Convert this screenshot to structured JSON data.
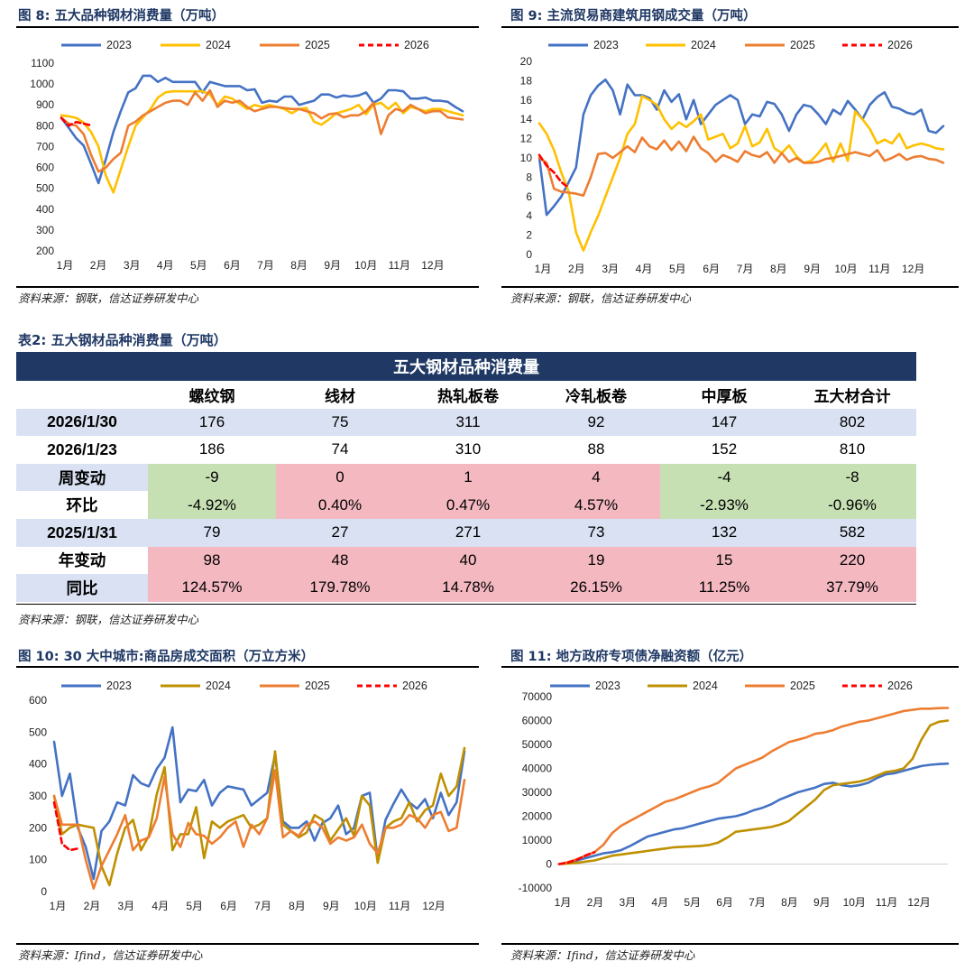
{
  "figures": {
    "fig8": {
      "title": "图 8:  五大品种钢材消费量（万吨）",
      "source": "资料来源：钢联，信达证券研发中心"
    },
    "fig9": {
      "title": "图 9:  主流贸易商建筑用钢成交量（万吨）",
      "source": "资料来源：钢联，信达证券研发中心"
    },
    "fig10": {
      "title": "图 10:  30 大中城市:商品房成交面积（万立方米）",
      "source": "资料来源：Ifind，信达证券研发中心"
    },
    "fig11": {
      "title": "图 11:  地方政府专项债净融资额（亿元）",
      "source": "资料来源：Ifind，信达证券研发中心"
    }
  },
  "table2": {
    "caption": "表2:  五大钢材品种消费量（万吨）",
    "header": "五大钢材品种消费量",
    "columns": [
      "螺纹钢",
      "线材",
      "热轧板卷",
      "冷轧板卷",
      "中厚板",
      "五大材合计"
    ],
    "rows": [
      {
        "label": "2026/1/30",
        "values": [
          "176",
          "75",
          "311",
          "92",
          "147",
          "802"
        ]
      },
      {
        "label": "2026/1/23",
        "values": [
          "186",
          "74",
          "310",
          "88",
          "152",
          "810"
        ]
      },
      {
        "label": "周变动",
        "values": [
          "-9",
          "0",
          "1",
          "4",
          "-4",
          "-8"
        ]
      },
      {
        "label": "环比",
        "values": [
          "-4.92%",
          "0.40%",
          "0.47%",
          "4.57%",
          "-2.93%",
          "-0.96%"
        ]
      },
      {
        "label": "2025/1/31",
        "values": [
          "79",
          "27",
          "271",
          "73",
          "132",
          "582"
        ]
      },
      {
        "label": "年变动",
        "values": [
          "98",
          "48",
          "40",
          "19",
          "15",
          "220"
        ]
      },
      {
        "label": "同比",
        "values": [
          "124.57%",
          "179.78%",
          "14.78%",
          "26.15%",
          "11.25%",
          "37.79%"
        ]
      }
    ],
    "source": "资料来源：钢联，信达证券研发中心"
  },
  "colors": {
    "y2023": "#4472c4",
    "y2024a": "#ffc000",
    "y2024b": "#bf9000",
    "y2025": "#ed7d31",
    "y2026": "#ff0000",
    "title": "#1f3864"
  },
  "chart_data": [
    {
      "id": "fig8",
      "type": "line",
      "title": "五大品种钢材消费量（万吨）",
      "xlabels": [
        "1月",
        "2月",
        "3月",
        "4月",
        "5月",
        "6月",
        "7月",
        "8月",
        "9月",
        "10月",
        "11月",
        "12月"
      ],
      "ylim": [
        200,
        1100
      ],
      "yticks": [
        200,
        300,
        400,
        500,
        600,
        700,
        800,
        900,
        1000,
        1100
      ],
      "legend": "top",
      "series": [
        {
          "name": "2023",
          "color": "#4472c4",
          "dash": false,
          "values": [
            838,
            790,
            740,
            705,
            617,
            525,
            640,
            770,
            870,
            960,
            980,
            1040,
            1040,
            1010,
            1030,
            1010,
            1010,
            1010,
            1010,
            960,
            1010,
            1000,
            990,
            990,
            990,
            970,
            975,
            910,
            920,
            915,
            940,
            940,
            900,
            910,
            920,
            950,
            950,
            935,
            945,
            940,
            945,
            960,
            910,
            930,
            970,
            970,
            965,
            930,
            930,
            935,
            920,
            920,
            915,
            890,
            870
          ]
        },
        {
          "name": "2024",
          "color": "#ffc000",
          "dash": false,
          "values": [
            850,
            845,
            838,
            815,
            770,
            700,
            560,
            480,
            590,
            700,
            800,
            840,
            880,
            935,
            960,
            965,
            965,
            965,
            965,
            965,
            950,
            900,
            940,
            930,
            905,
            880,
            900,
            890,
            900,
            890,
            880,
            860,
            880,
            885,
            820,
            805,
            830,
            860,
            870,
            880,
            900,
            855,
            900,
            910,
            880,
            910,
            860,
            890,
            880,
            870,
            880,
            880,
            870,
            860,
            850
          ]
        },
        {
          "name": "2025",
          "color": "#ed7d31",
          "dash": false,
          "values": [
            838,
            810,
            800,
            760,
            660,
            580,
            600,
            640,
            670,
            800,
            820,
            850,
            870,
            890,
            910,
            920,
            920,
            900,
            960,
            920,
            970,
            890,
            920,
            910,
            920,
            890,
            870,
            880,
            890,
            890,
            885,
            880,
            880,
            870,
            860,
            835,
            855,
            860,
            840,
            850,
            850,
            870,
            910,
            760,
            850,
            880,
            870,
            900,
            880,
            860,
            870,
            870,
            840,
            835,
            830
          ]
        },
        {
          "name": "2026",
          "color": "#ff0000",
          "dash": true,
          "values": [
            838,
            800,
            818,
            810,
            802
          ]
        }
      ]
    },
    {
      "id": "fig9",
      "type": "line",
      "title": "主流贸易商建筑用钢成交量（万吨）",
      "xlabels": [
        "1月",
        "2月",
        "3月",
        "4月",
        "5月",
        "6月",
        "7月",
        "8月",
        "9月",
        "10月",
        "11月",
        "12月"
      ],
      "ylim": [
        0,
        20
      ],
      "yticks": [
        0,
        2,
        4,
        6,
        8,
        10,
        12,
        14,
        16,
        18,
        20
      ],
      "legend": "top",
      "series": [
        {
          "name": "2023",
          "color": "#4472c4",
          "dash": false,
          "values": [
            10.0,
            4.1,
            5.0,
            6.0,
            7.5,
            9.0,
            14.5,
            16.5,
            17.5,
            18.1,
            17.0,
            14.5,
            17.6,
            16.5,
            16.5,
            16.2,
            15.0,
            17.0,
            15.8,
            16.6,
            14.0,
            16.0,
            13.5,
            14.5,
            15.5,
            16.0,
            16.5,
            16.0,
            13.5,
            14.5,
            14.3,
            15.8,
            15.6,
            14.5,
            12.8,
            14.5,
            15.5,
            15.3,
            14.5,
            13.5,
            15.0,
            14.5,
            15.9,
            15.0,
            14.0,
            15.5,
            16.3,
            16.8,
            15.3,
            15.1,
            14.7,
            14.5,
            15.0,
            12.8,
            12.6,
            13.3
          ]
        },
        {
          "name": "2024",
          "color": "#ffc000",
          "dash": false,
          "values": [
            13.6,
            12.5,
            10.8,
            8.5,
            6.5,
            2.3,
            0.4,
            2.3,
            4.0,
            6.0,
            8.0,
            10.0,
            12.5,
            13.5,
            16.4,
            16.0,
            15.5,
            14.0,
            13.0,
            13.7,
            13.2,
            13.8,
            14.5,
            11.9,
            12.2,
            12.5,
            11.0,
            11.5,
            13.3,
            11.2,
            11.6,
            13.0,
            11.0,
            10.5,
            11.3,
            10.2,
            9.5,
            9.7,
            10.5,
            11.5,
            9.6,
            11.5,
            9.7,
            14.8,
            14.0,
            13.0,
            11.5,
            11.9,
            11.5,
            12.5,
            11.0,
            11.3,
            11.5,
            11.3,
            11.0,
            10.9
          ]
        },
        {
          "name": "2025",
          "color": "#ed7d31",
          "dash": false,
          "values": [
            10.0,
            9.5,
            6.8,
            6.5,
            6.4,
            6.3,
            6.1,
            8.0,
            10.4,
            10.5,
            10.0,
            10.6,
            11.2,
            10.6,
            12.1,
            11.2,
            10.9,
            11.8,
            10.8,
            11.7,
            10.7,
            12.2,
            11.0,
            10.5,
            9.6,
            10.3,
            10.0,
            9.6,
            10.7,
            10.3,
            10.1,
            10.6,
            9.5,
            10.5,
            9.6,
            10.0,
            9.5,
            9.5,
            9.6,
            9.9,
            10.0,
            10.2,
            10.4,
            10.6,
            10.4,
            10.2,
            10.8,
            9.7,
            10.0,
            10.4,
            9.8,
            10.1,
            10.2,
            9.9,
            9.8,
            9.5
          ]
        },
        {
          "name": "2026",
          "color": "#ff0000",
          "dash": true,
          "values": [
            10.3,
            9.2,
            8.5,
            7.5,
            6.9
          ]
        }
      ]
    },
    {
      "id": "fig10",
      "type": "line",
      "title": "30 大中城市:商品房成交面积（万立方米）",
      "xlabels": [
        "1月",
        "2月",
        "3月",
        "4月",
        "5月",
        "6月",
        "7月",
        "8月",
        "9月",
        "10月",
        "11月",
        "12月"
      ],
      "ylim": [
        0,
        600
      ],
      "yticks": [
        0,
        100,
        200,
        300,
        400,
        500,
        600
      ],
      "legend": "top",
      "series": [
        {
          "name": "2023",
          "color": "#4472c4",
          "dash": false,
          "values": [
            470,
            300,
            370,
            200,
            140,
            40,
            190,
            220,
            280,
            270,
            365,
            340,
            330,
            385,
            420,
            515,
            280,
            320,
            315,
            350,
            270,
            310,
            330,
            325,
            320,
            270,
            290,
            310,
            430,
            220,
            200,
            200,
            220,
            160,
            215,
            230,
            270,
            180,
            200,
            300,
            310,
            100,
            225,
            275,
            320,
            280,
            260,
            290,
            230,
            310,
            240,
            280,
            440
          ]
        },
        {
          "name": "2024",
          "color": "#bf9000",
          "dash": false,
          "values": [
            300,
            180,
            200,
            210,
            205,
            200,
            80,
            20,
            120,
            200,
            225,
            130,
            175,
            305,
            390,
            130,
            180,
            180,
            265,
            105,
            220,
            200,
            220,
            230,
            240,
            200,
            210,
            230,
            440,
            210,
            190,
            170,
            185,
            240,
            225,
            160,
            195,
            230,
            175,
            300,
            270,
            90,
            200,
            220,
            230,
            280,
            220,
            255,
            270,
            370,
            300,
            330,
            450
          ]
        },
        {
          "name": "2025",
          "color": "#ed7d31",
          "dash": false,
          "values": [
            300,
            210,
            210,
            210,
            100,
            10,
            80,
            130,
            180,
            240,
            130,
            160,
            170,
            230,
            360,
            180,
            140,
            215,
            180,
            175,
            150,
            170,
            200,
            220,
            140,
            210,
            180,
            230,
            380,
            170,
            190,
            175,
            210,
            220,
            200,
            150,
            170,
            160,
            170,
            210,
            150,
            120,
            200,
            200,
            210,
            240,
            230,
            200,
            240,
            250,
            190,
            200,
            350
          ]
        },
        {
          "name": "2026",
          "color": "#ff0000",
          "dash": true,
          "values": [
            280,
            150,
            130,
            135
          ]
        }
      ]
    },
    {
      "id": "fig11",
      "type": "line",
      "title": "地方政府专项债净融资额（亿元）",
      "xlabels": [
        "1月",
        "2月",
        "3月",
        "4月",
        "5月",
        "6月",
        "7月",
        "8月",
        "9月",
        "10月",
        "11月",
        "12月"
      ],
      "ylim": [
        -10000,
        70000
      ],
      "yticks": [
        -10000,
        0,
        10000,
        20000,
        30000,
        40000,
        50000,
        60000,
        70000
      ],
      "legend": "top",
      "series": [
        {
          "name": "2023",
          "color": "#4472c4",
          "dash": false,
          "values": [
            0,
            500,
            1500,
            2500,
            3500,
            4500,
            5000,
            5800,
            7500,
            9500,
            11500,
            12500,
            13500,
            14500,
            15000,
            16000,
            17000,
            18000,
            19000,
            19500,
            20000,
            21000,
            22500,
            23500,
            25000,
            27000,
            28500,
            30000,
            31000,
            32000,
            33500,
            34000,
            33000,
            32500,
            33000,
            34000,
            36000,
            37500,
            38000,
            39000,
            40000,
            41000,
            41500,
            41800,
            42000
          ]
        },
        {
          "name": "2024",
          "color": "#bf9000",
          "dash": false,
          "values": [
            0,
            200,
            500,
            1000,
            1500,
            2500,
            3500,
            4000,
            4500,
            5000,
            5500,
            6000,
            6500,
            7000,
            7200,
            7400,
            7600,
            8000,
            9000,
            11000,
            13500,
            14000,
            14500,
            15000,
            15500,
            16500,
            18000,
            21000,
            24000,
            27000,
            31000,
            33000,
            33500,
            34000,
            34500,
            35500,
            37000,
            38500,
            39000,
            40000,
            44000,
            52000,
            58000,
            59500,
            60000
          ]
        },
        {
          "name": "2025",
          "color": "#ed7d31",
          "dash": false,
          "values": [
            0,
            800,
            2000,
            3500,
            5000,
            8000,
            13000,
            16000,
            18000,
            20000,
            22000,
            24000,
            26000,
            27000,
            28500,
            30000,
            31500,
            32500,
            34000,
            37000,
            40000,
            41500,
            43000,
            44500,
            47000,
            49000,
            51000,
            52000,
            53000,
            54500,
            55000,
            56000,
            57500,
            58500,
            59500,
            60000,
            61000,
            62000,
            63000,
            64000,
            64500,
            65000,
            65000,
            65200,
            65300
          ]
        },
        {
          "name": "2026",
          "color": "#ff0000",
          "dash": true,
          "values": [
            0,
            600,
            1800,
            3600,
            5000
          ]
        }
      ]
    }
  ]
}
